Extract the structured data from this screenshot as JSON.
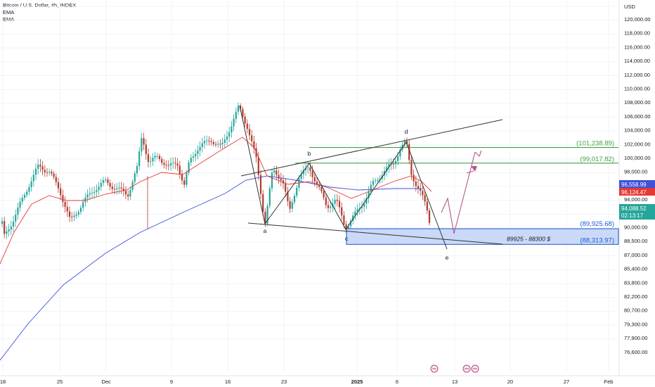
{
  "legend": {
    "title": "Bitcoin / U.S. Dollar, 4h, INDEX",
    "indicators": [
      "EMA",
      "EMA"
    ]
  },
  "currency_label": "USD",
  "colors": {
    "up": "#26a69a",
    "down": "#b23b2e",
    "ema_fast": "#e53935",
    "ema_slow": "#3f51d9",
    "pattern": "#333333",
    "resistance": "#43a047",
    "support": "#1e5ad2",
    "support_fill": "#c9d9f7",
    "projection": "#b35a8a",
    "grid": "#f0f3fa"
  },
  "chart_data": {
    "type": "candlestick",
    "symbol": "Bitcoin / U.S. Dollar, 4h, INDEX",
    "y_axis": {
      "ticks": [
        "120,000.00",
        "118,000.00",
        "116,000.00",
        "114,000.00",
        "112,000.00",
        "110,000.00",
        "108,000.00",
        "106,000.00",
        "104,000.00",
        "102,000.00",
        "100,000.00",
        "98,000.00",
        "96,000.00",
        "94,000.00",
        "92,000.00",
        "90,000.00",
        "88,500.00",
        "87,000.00",
        "85,400.00",
        "83,800.00",
        "82,200.00",
        "80,700.00",
        "79,300.00",
        "77,900.00",
        "76,600.00"
      ]
    },
    "x_axis": {
      "ticks": [
        "18",
        "25",
        "Dec",
        "9",
        "16",
        "23",
        "2025",
        "6",
        "13",
        "20",
        "27",
        "Feb"
      ]
    },
    "price_tags": [
      {
        "label": "96,558.99",
        "role": "ema_slow"
      },
      {
        "label": "96,124.47",
        "role": "ema_fast"
      },
      {
        "label": "94,088.52",
        "sublabel": "02:13:17",
        "role": "last_price"
      }
    ],
    "levels": [
      {
        "label": "(101,238.89)",
        "value": 101238.89,
        "kind": "resistance"
      },
      {
        "label": "(99,017.82)",
        "value": 99017.82,
        "kind": "resistance"
      },
      {
        "label": "(89,925.68)",
        "value": 89925.68,
        "kind": "support"
      },
      {
        "label": "(88,313.97)",
        "value": 88313.97,
        "kind": "support"
      }
    ],
    "zone_label": "89925 - 88300 $",
    "wave_labels": [
      "a",
      "b",
      "c",
      "d",
      "e"
    ],
    "waves": [
      {
        "label": "a",
        "value": 92500
      },
      {
        "label": "b",
        "value": 99800
      },
      {
        "label": "c",
        "value": 91400
      },
      {
        "label": "d",
        "value": 102700
      },
      {
        "label": "e",
        "value": 89300
      }
    ],
    "events": [
      "us-flag",
      "us-flag",
      "us-flag"
    ]
  }
}
